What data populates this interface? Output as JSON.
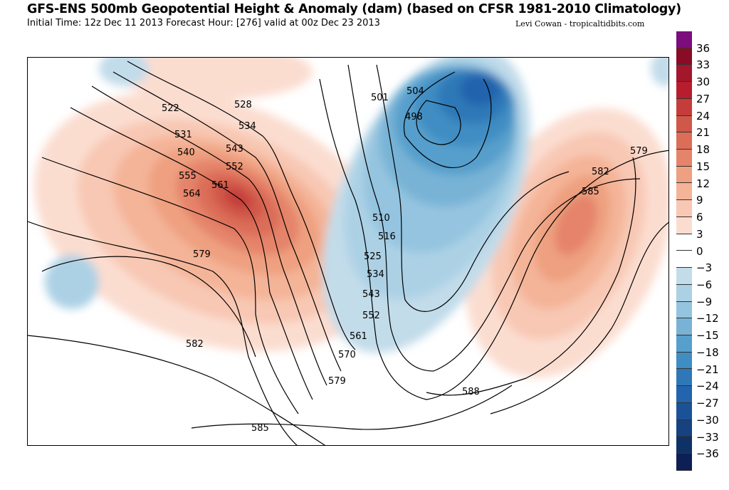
{
  "header": {
    "title": "GFS-ENS 500mb Geopotential Height & Anomaly (dam) (based on CFSR 1981-2010 Climatology)",
    "subtitle": "Initial Time: 12z Dec 11 2013 Forecast Hour: [276] valid at 00z Dec 23 2013",
    "credit": "Levi Cowan - tropicaltidbits.com"
  },
  "colorbar": {
    "ticks": [
      "36",
      "33",
      "30",
      "27",
      "24",
      "21",
      "18",
      "15",
      "12",
      "9",
      "6",
      "3",
      "0",
      "−3",
      "−6",
      "−9",
      "−12",
      "−15",
      "−18",
      "−21",
      "−24",
      "−27",
      "−30",
      "−33",
      "−36"
    ],
    "colors": [
      "#7b0d7c",
      "#8b0a26",
      "#a3162c",
      "#b81d2d",
      "#c53d3a",
      "#d05848",
      "#dc6d58",
      "#e5846a",
      "#eea080",
      "#f4b498",
      "#f8c8b4",
      "#fbddd0",
      "#ffffff",
      "#ffffff",
      "#c2dcea",
      "#acd1e5",
      "#94c4df",
      "#78b3d6",
      "#579fcc",
      "#3f8dc3",
      "#2f78b7",
      "#2264ad",
      "#1b5297",
      "#164380",
      "#0f3266",
      "#0d1f55"
    ]
  },
  "contour_labels": [
    "522",
    "528",
    "534",
    "531",
    "540",
    "543",
    "552",
    "555",
    "561",
    "564",
    "579",
    "582",
    "585",
    "501",
    "504",
    "498",
    "510",
    "516",
    "525",
    "534",
    "543",
    "552",
    "561",
    "570",
    "579",
    "588",
    "579",
    "582",
    "585"
  ]
}
